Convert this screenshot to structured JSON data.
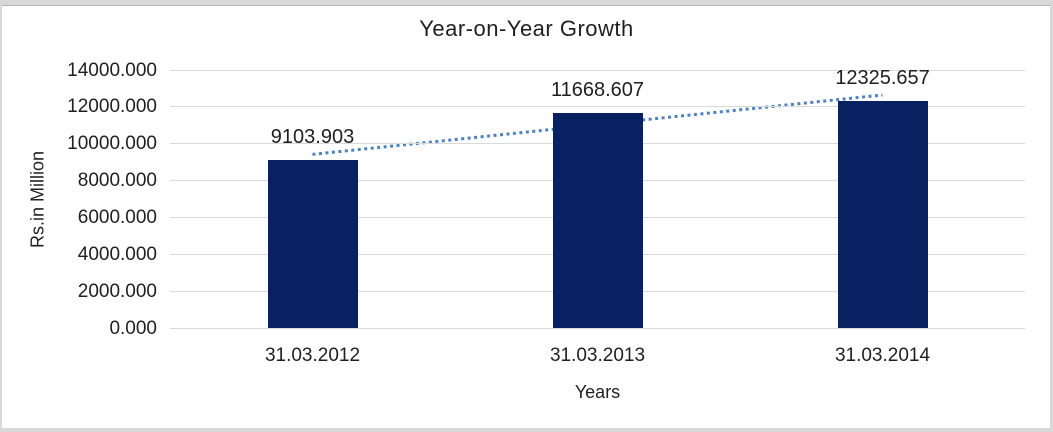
{
  "chart_data": {
    "type": "bar",
    "title": "Year-on-Year Growth",
    "xlabel": "Years",
    "ylabel": "Rs.in Million",
    "categories": [
      "31.03.2012",
      "31.03.2013",
      "31.03.2014"
    ],
    "values": [
      9103.903,
      11668.607,
      12325.657
    ],
    "data_labels": [
      "9103.903",
      "11668.607",
      "12325.657"
    ],
    "ylim": [
      0,
      14000
    ],
    "ytick_step": 2000,
    "ytick_labels": [
      "0.000",
      "2000.000",
      "4000.000",
      "6000.000",
      "8000.000",
      "10000.000",
      "12000.000",
      "14000.000"
    ],
    "grid": true,
    "legend": "none",
    "bar_color": "#0a2161",
    "gridline_color": "#d9d9d9",
    "text_color": "#1f1f1f",
    "trendline": {
      "type": "linear",
      "style": "dotted",
      "color": "#4e81c0",
      "start_value": 9421.8,
      "end_value": 12643.6
    },
    "frame": {
      "color": "#d9d9d9",
      "shadow": "#b3b3b3"
    }
  }
}
